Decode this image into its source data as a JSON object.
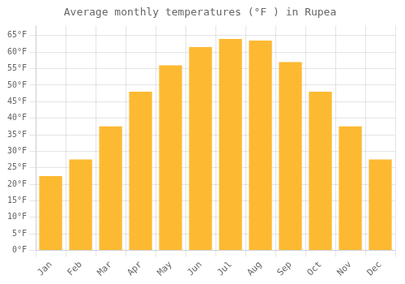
{
  "chart_data": {
    "type": "bar",
    "title": "Average monthly temperatures (°F ) in Rupea",
    "categories": [
      "Jan",
      "Feb",
      "Mar",
      "Apr",
      "May",
      "Jun",
      "Jul",
      "Aug",
      "Sep",
      "Oct",
      "Nov",
      "Dec"
    ],
    "values": [
      22.5,
      27.5,
      37.5,
      48,
      56,
      61.5,
      64,
      63.5,
      57,
      48,
      37.5,
      27.5
    ],
    "color": "#FDB931",
    "ylim": [
      0,
      68
    ],
    "yticks": [
      {
        "value": 0,
        "label": "0°F"
      },
      {
        "value": 5,
        "label": "5°F"
      },
      {
        "value": 10,
        "label": "10°F"
      },
      {
        "value": 15,
        "label": "15°F"
      },
      {
        "value": 20,
        "label": "20°F"
      },
      {
        "value": 25,
        "label": "25°F"
      },
      {
        "value": 30,
        "label": "30°F"
      },
      {
        "value": 35,
        "label": "35°F"
      },
      {
        "value": 40,
        "label": "40°F"
      },
      {
        "value": 45,
        "label": "45°F"
      },
      {
        "value": 50,
        "label": "50°F"
      },
      {
        "value": 55,
        "label": "55°F"
      },
      {
        "value": 60,
        "label": "60°F"
      },
      {
        "value": 65,
        "label": "65°F"
      }
    ],
    "grid": true
  }
}
